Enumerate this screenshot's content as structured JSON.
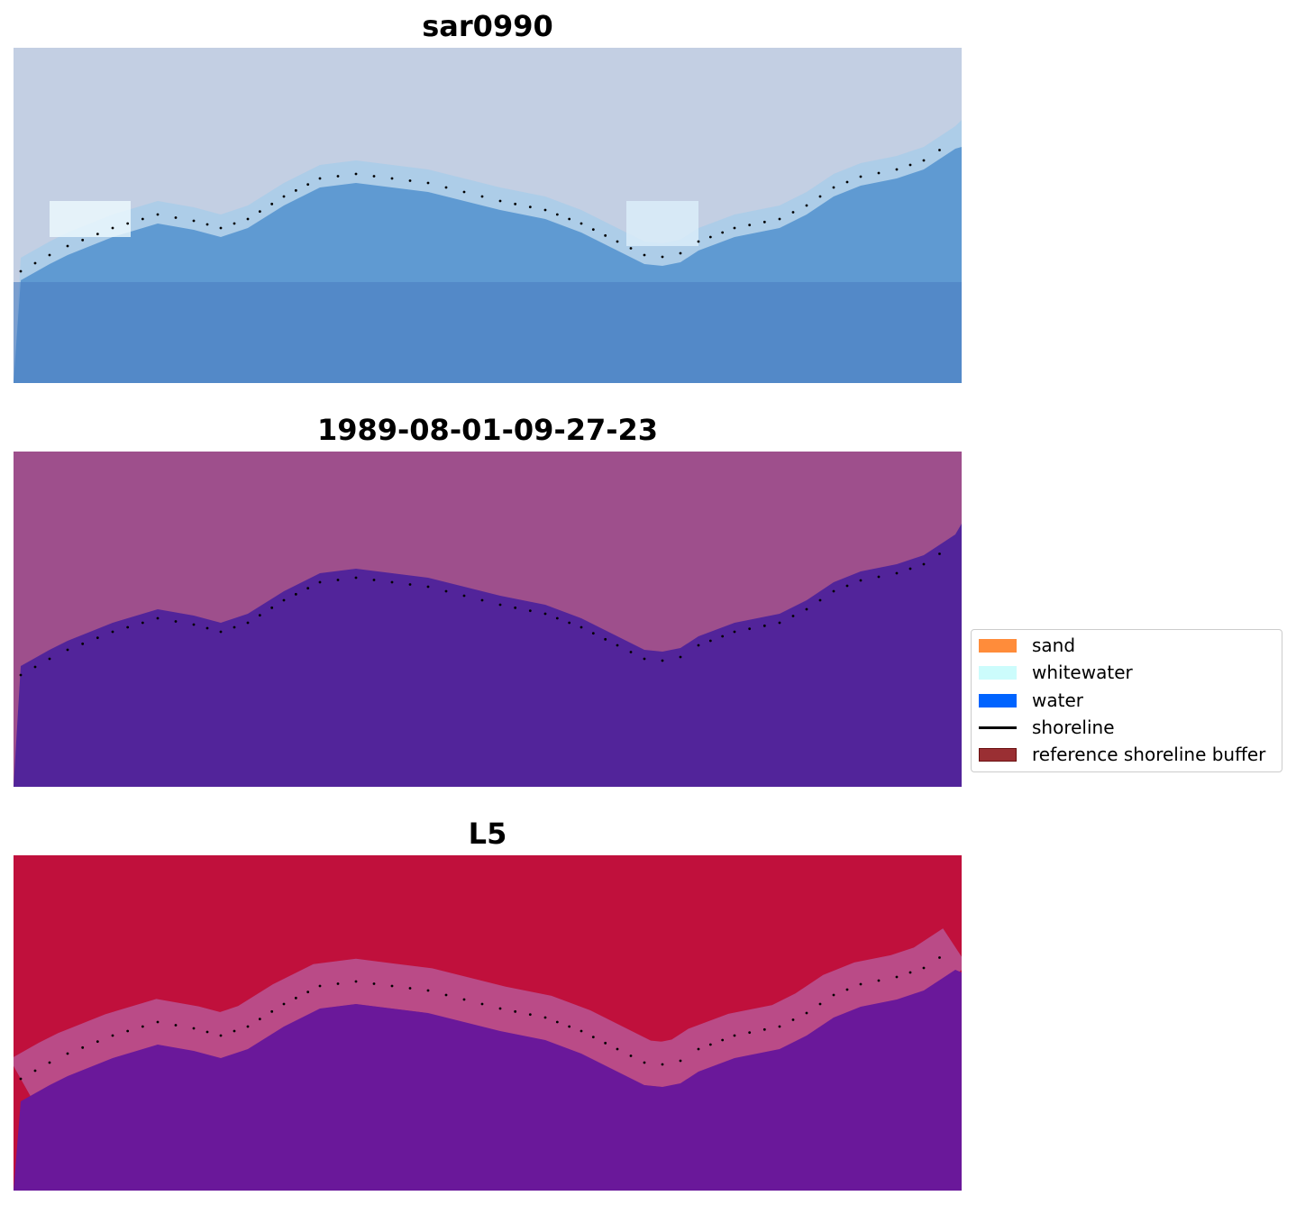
{
  "panels": [
    {
      "title": "sar0990",
      "palette": {
        "top": "#c3cfe3",
        "mid": "#d8e6f3",
        "bottom": "#4b7ec2"
      }
    },
    {
      "title": "1989-08-01-09-27-23",
      "palette": {
        "top": "#9e4f8c",
        "bottom": "#52249a"
      }
    },
    {
      "title": "L5",
      "palette": {
        "top": "#c0103c",
        "band": "#b85a9a",
        "bottom": "#6a189a"
      }
    }
  ],
  "legend": {
    "items": [
      {
        "label": "sand",
        "color": "#ff8c3a",
        "kind": "patch"
      },
      {
        "label": "whitewater",
        "color": "#ccfcfc",
        "kind": "patch"
      },
      {
        "label": "water",
        "color": "#0064ff",
        "kind": "patch"
      },
      {
        "label": "shoreline",
        "color": "#000000",
        "kind": "line"
      },
      {
        "label": "reference shoreline buffer",
        "color": "#9a2f33",
        "kind": "patch"
      }
    ]
  }
}
